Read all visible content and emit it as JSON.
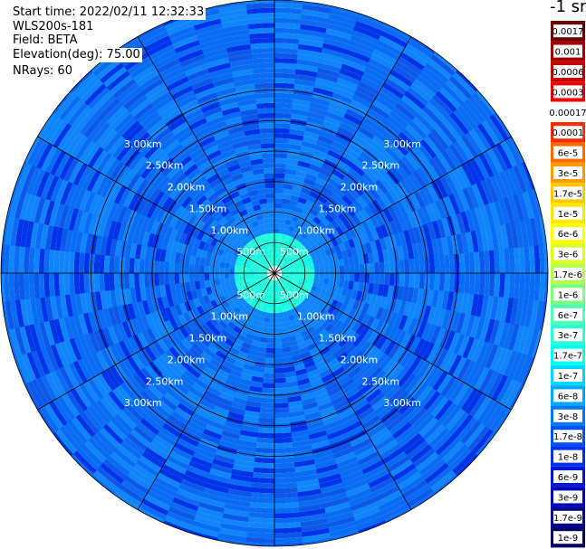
{
  "header": {
    "start_time": "Start time: 2022/02/11 12:32:33",
    "instrument": "WLS200s-181",
    "field": "Field: BETA",
    "elevation": "Elevation(deg): 75.00",
    "nrays": "NRays: 60"
  },
  "units_label": "-1 sr",
  "chart_data": {
    "type": "heatmap",
    "projection": "polar-ppi",
    "field": "BETA",
    "elevation_deg": 75.0,
    "n_rays": 60,
    "range_rings_km": [
      0.5,
      1.0,
      1.5,
      2.0,
      2.5,
      3.0
    ],
    "ring_labels": [
      "500m",
      "1.00km",
      "1.50km",
      "2.00km",
      "2.50km",
      "3.00km"
    ],
    "spoke_angles_deg": [
      0,
      30,
      60,
      90,
      120,
      150,
      180,
      210,
      240,
      270,
      300,
      330
    ],
    "observed_value_ranges": [
      {
        "range_km": [
          0.0,
          0.12
        ],
        "value": "no data"
      },
      {
        "range_km": [
          0.12,
          0.65
        ],
        "value": "≈1.7e-7 (cyan)"
      },
      {
        "range_km": [
          0.65,
          3.6
        ],
        "value": "≈1e-8 to 6e-8 (blue)"
      }
    ],
    "colorbar": {
      "labels": [
        "0.0017",
        "0.001",
        "0.0006",
        "0.0003",
        "0.00017",
        "0.0001",
        "6e-5",
        "3e-5",
        "1.7e-5",
        "1e-5",
        "6e-6",
        "3e-6",
        "1.7e-6",
        "1e-6",
        "6e-7",
        "3e-7",
        "1.7e-7",
        "1e-7",
        "6e-8",
        "3e-8",
        "1.7e-8",
        "1e-8",
        "6e-9",
        "3e-9",
        "1.7e-9",
        "1e-9"
      ],
      "colors": [
        "#6b0000",
        "#a30000",
        "#c80000",
        "#ee0000",
        "#ffffff",
        "#ff2a00",
        "#ff6a00",
        "#ff9a00",
        "#ffc800",
        "#ffe800",
        "#ffff00",
        "#dcff20",
        "#b4ff4a",
        "#7cff7c",
        "#4effb4",
        "#2cffd8",
        "#00ffee",
        "#00d8ff",
        "#00a8ff",
        "#0078ff",
        "#0050ff",
        "#0030f0",
        "#0018d8",
        "#0000b8",
        "#00008c",
        "#000066"
      ]
    }
  }
}
